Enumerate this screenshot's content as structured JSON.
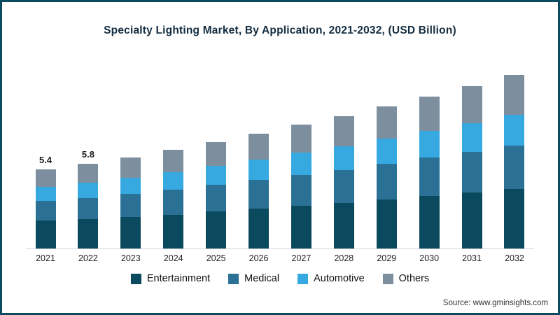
{
  "title": "Specialty Lighting Market, By Application, 2021-2032, (USD Billion)",
  "source": "Source: www.gminsights.com",
  "colors": {
    "frame_border": "#0b4a5e",
    "axis_line": "#cfd4d8"
  },
  "chart_data": {
    "type": "bar",
    "stacked": true,
    "title": "Specialty Lighting Market, By Application, 2021-2032, (USD Billion)",
    "xlabel": "",
    "ylabel": "USD Billion",
    "ylim": [
      0,
      12
    ],
    "grid": false,
    "legend_position": "bottom",
    "categories": [
      "2021",
      "2022",
      "2023",
      "2024",
      "2025",
      "2026",
      "2027",
      "2028",
      "2029",
      "2030",
      "2031",
      "2032"
    ],
    "series": [
      {
        "name": "Entertainment",
        "color": "#0b4a5e",
        "values": [
          1.9,
          2.0,
          2.15,
          2.3,
          2.5,
          2.7,
          2.9,
          3.1,
          3.35,
          3.55,
          3.8,
          4.05
        ]
      },
      {
        "name": "Medical",
        "color": "#2a7195",
        "values": [
          1.35,
          1.45,
          1.55,
          1.7,
          1.8,
          1.95,
          2.1,
          2.25,
          2.45,
          2.6,
          2.75,
          2.95
        ]
      },
      {
        "name": "Automotive",
        "color": "#36a9e1",
        "values": [
          0.95,
          1.05,
          1.1,
          1.2,
          1.3,
          1.4,
          1.5,
          1.6,
          1.7,
          1.8,
          1.95,
          2.1
        ]
      },
      {
        "name": "Others",
        "color": "#7d8f9e",
        "values": [
          1.2,
          1.3,
          1.4,
          1.5,
          1.6,
          1.75,
          1.9,
          2.05,
          2.2,
          2.35,
          2.5,
          2.7
        ]
      }
    ],
    "totals": [
      5.4,
      5.8,
      6.2,
      6.7,
      7.2,
      7.8,
      8.4,
      9.0,
      9.7,
      10.3,
      11.0,
      11.8
    ],
    "data_labels": [
      "5.4",
      "5.8",
      "",
      "",
      "",
      "",
      "",
      "",
      "",
      "",
      "",
      ""
    ]
  }
}
